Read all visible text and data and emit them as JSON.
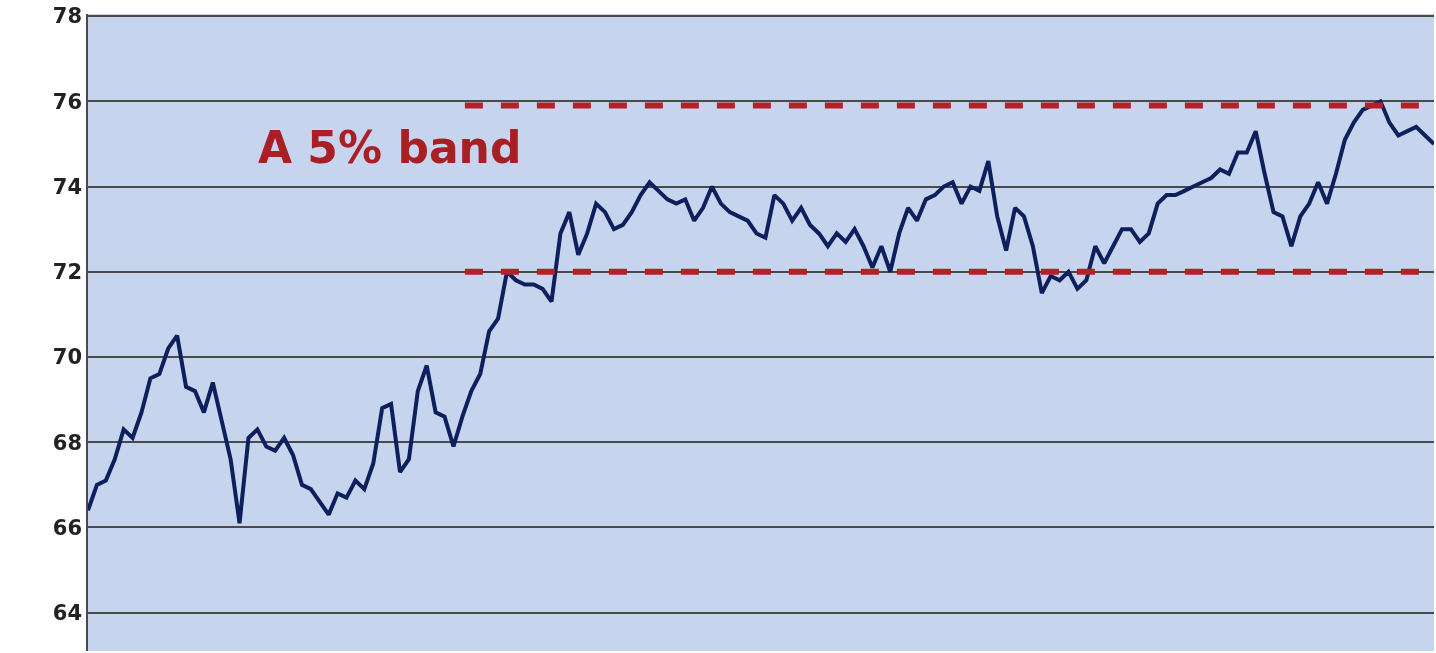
{
  "chart_data": {
    "type": "line",
    "categories": [
      null,
      null,
      null,
      null,
      null,
      null,
      null,
      null,
      null,
      null,
      null,
      null,
      null,
      null,
      null,
      null,
      null,
      null,
      null,
      null,
      null,
      null,
      null,
      null,
      null,
      null,
      null,
      null,
      null,
      null,
      null,
      null,
      null,
      null,
      null,
      null,
      null,
      null,
      null,
      null,
      null,
      null,
      null,
      null,
      null,
      null,
      null,
      null,
      null,
      null,
      null,
      null,
      null,
      null,
      null,
      null,
      null,
      null,
      null,
      null,
      null,
      null,
      null,
      null,
      null,
      null,
      null,
      null,
      null,
      null,
      null,
      null,
      null,
      null,
      null,
      null,
      null,
      null,
      null,
      null,
      null,
      null,
      null,
      null,
      null,
      null,
      null,
      null,
      null,
      null,
      null,
      null,
      null,
      null,
      null,
      null,
      null,
      null,
      null,
      null,
      null,
      null,
      null,
      null,
      null,
      null,
      null,
      null,
      null,
      null,
      null,
      null,
      null,
      null,
      null,
      null,
      null,
      null,
      null,
      null,
      null,
      null,
      null,
      null,
      null,
      null,
      null,
      null,
      null,
      null,
      null,
      null,
      null,
      null,
      null,
      null,
      null,
      null,
      null,
      null,
      null,
      null,
      null,
      null,
      null,
      null,
      null,
      null,
      null,
      null,
      null,
      null
    ],
    "series": [
      {
        "color": "#0d1f5c",
        "values": [
          66.4,
          67.0,
          67.1,
          67.6,
          68.3,
          68.1,
          68.7,
          69.5,
          69.6,
          70.2,
          70.5,
          69.3,
          69.2,
          68.7,
          69.4,
          68.5,
          67.6,
          66.1,
          68.1,
          68.3,
          67.9,
          67.8,
          68.1,
          67.7,
          67.0,
          66.9,
          66.6,
          66.3,
          66.8,
          66.7,
          67.1,
          66.9,
          67.5,
          68.8,
          68.9,
          67.3,
          67.6,
          69.2,
          69.8,
          68.7,
          68.6,
          67.9,
          68.6,
          69.2,
          69.6,
          70.6,
          70.9,
          72.0,
          71.8,
          71.7,
          71.7,
          71.6,
          71.3,
          72.9,
          73.4,
          72.4,
          72.9,
          73.6,
          73.4,
          73.0,
          73.1,
          73.4,
          73.8,
          74.1,
          73.9,
          73.7,
          73.6,
          73.7,
          73.2,
          73.5,
          74.0,
          73.6,
          73.4,
          73.3,
          73.2,
          72.9,
          72.8,
          73.8,
          73.6,
          73.2,
          73.5,
          73.1,
          72.9,
          72.6,
          72.9,
          72.7,
          73.0,
          72.6,
          72.1,
          72.6,
          72.0,
          72.9,
          73.5,
          73.2,
          73.7,
          73.8,
          74.0,
          74.1,
          73.6,
          74.0,
          73.9,
          74.6,
          73.3,
          72.5,
          73.5,
          73.3,
          72.6,
          71.5,
          71.9,
          71.8,
          72.0,
          71.6,
          71.8,
          72.6,
          72.2,
          72.6,
          73.0,
          73.0,
          72.7,
          72.9,
          73.6,
          73.8,
          73.8,
          73.9,
          74.0,
          74.1,
          74.2,
          74.4,
          74.3,
          74.8,
          74.8,
          75.3,
          74.3,
          73.4,
          73.3,
          72.6,
          73.3,
          73.6,
          74.1,
          73.6,
          74.3,
          75.1,
          75.5,
          75.8,
          75.9,
          76.0,
          75.5,
          75.2,
          75.3,
          75.4,
          75.2,
          75.0
        ]
      }
    ],
    "ylim": [
      63.1,
      78.05
    ],
    "yticks": [
      64,
      66,
      68,
      70,
      72,
      74,
      76,
      78
    ],
    "grid": "y",
    "marker": "none",
    "line_style": "solid",
    "tick_labels": "y",
    "ref_lines": [
      {
        "axis": "y",
        "value": 75.9,
        "color": "#b52126",
        "line_style": "dashed"
      },
      {
        "axis": "y",
        "value": 72,
        "color": "#b52126",
        "line_style": "dashed"
      }
    ],
    "annotations": [
      "A 5% band"
    ]
  }
}
